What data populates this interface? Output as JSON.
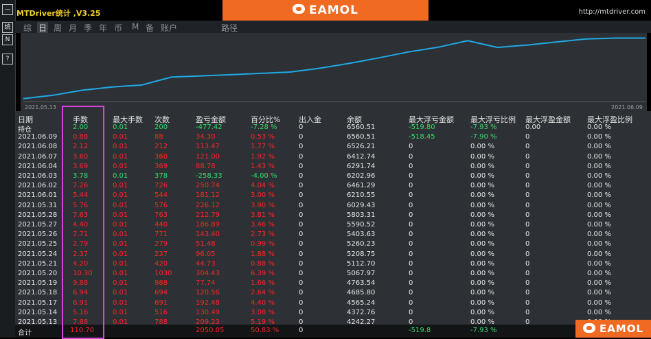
{
  "window": {
    "title": "MTDriver统计 ,V3.25",
    "url": "http://mtdriver.com"
  },
  "watermark": {
    "brand": "EAMOL"
  },
  "sidebar": {
    "buttons": [
      "—",
      "统",
      "N",
      "?"
    ]
  },
  "tabs": [
    {
      "label": "综",
      "active": false
    },
    {
      "label": "日",
      "active": true
    },
    {
      "label": "周",
      "active": false
    },
    {
      "label": "月",
      "active": false
    },
    {
      "label": "季",
      "active": false
    },
    {
      "label": "年",
      "active": false
    },
    {
      "label": "币",
      "active": false
    },
    {
      "label": "M",
      "active": false
    },
    {
      "label": "备",
      "active": false
    },
    {
      "label": "账户",
      "active": false
    },
    {
      "label": "路径",
      "active": false
    }
  ],
  "chart": {
    "start_date": "2021.05.13",
    "end_date": "2021.06.09",
    "line_color": "#1fa9e6",
    "balance": [
      4242.27,
      4372.76,
      4565.24,
      4685.8,
      4763.54,
      5067.97,
      5112.7,
      5157.43,
      5208.75,
      5260.23,
      5403.63,
      5590.52,
      5803.31,
      6029.43,
      6210.55,
      6461.29,
      6202.96,
      6291.74,
      6412.74,
      6526.21,
      6560.51,
      6560.51
    ]
  },
  "table": {
    "headers": [
      "日期",
      "手数",
      "最大手数",
      "次数",
      "盈亏金额",
      "百分比%",
      "出入金",
      "余额",
      "最大浮亏金额",
      "最大浮亏比例",
      "最大浮盈金额",
      "最大浮盈比例"
    ],
    "rows": [
      {
        "date": "持仓",
        "lots": "2.00",
        "max_lots": "0.01",
        "count": "200",
        "pnl": "-477.42",
        "pct": "-7.28 %",
        "io": "0",
        "balance": "6560.51",
        "max_float_loss": "-519.80",
        "max_float_loss_pct": "-7.93 %",
        "max_float_profit": "0.00",
        "max_float_profit_pct": "0.00 %",
        "color": "green"
      },
      {
        "date": "2021.06.09",
        "lots": "0.88",
        "max_lots": "0.01",
        "count": "88",
        "pnl": "34.30",
        "pct": "0.53 %",
        "io": "0",
        "balance": "6560.51",
        "max_float_loss": "-518.45",
        "max_float_loss_pct": "-7.90 %",
        "max_float_profit": "0",
        "max_float_profit_pct": "0.00 %",
        "color": "red"
      },
      {
        "date": "2021.06.08",
        "lots": "2.12",
        "max_lots": "0.01",
        "count": "212",
        "pnl": "113.47",
        "pct": "1.77 %",
        "io": "0",
        "balance": "6526.21",
        "max_float_loss": "0",
        "max_float_loss_pct": "0.00 %",
        "max_float_profit": "0",
        "max_float_profit_pct": "0.00 %",
        "color": "red"
      },
      {
        "date": "2021.06.07",
        "lots": "3.60",
        "max_lots": "0.01",
        "count": "360",
        "pnl": "121.00",
        "pct": "1.92 %",
        "io": "0",
        "balance": "6412.74",
        "max_float_loss": "0",
        "max_float_loss_pct": "0.00 %",
        "max_float_profit": "0",
        "max_float_profit_pct": "0.00 %",
        "color": "red"
      },
      {
        "date": "2021.06.04",
        "lots": "3.69",
        "max_lots": "0.01",
        "count": "369",
        "pnl": "88.78",
        "pct": "1.43 %",
        "io": "0",
        "balance": "6291.74",
        "max_float_loss": "0",
        "max_float_loss_pct": "0.00 %",
        "max_float_profit": "0",
        "max_float_profit_pct": "0.00 %",
        "color": "red"
      },
      {
        "date": "2021.06.03",
        "lots": "3.78",
        "max_lots": "0.01",
        "count": "378",
        "pnl": "-258.33",
        "pct": "-4.00 %",
        "io": "0",
        "balance": "6202.96",
        "max_float_loss": "0",
        "max_float_loss_pct": "0.00 %",
        "max_float_profit": "0",
        "max_float_profit_pct": "0.00 %",
        "color": "green"
      },
      {
        "date": "2021.06.02",
        "lots": "7.26",
        "max_lots": "0.01",
        "count": "726",
        "pnl": "250.74",
        "pct": "4.04 %",
        "io": "0",
        "balance": "6461.29",
        "max_float_loss": "0",
        "max_float_loss_pct": "0.00 %",
        "max_float_profit": "0",
        "max_float_profit_pct": "0.00 %",
        "color": "red"
      },
      {
        "date": "2021.06.01",
        "lots": "5.44",
        "max_lots": "0.01",
        "count": "544",
        "pnl": "181.12",
        "pct": "3.00 %",
        "io": "0",
        "balance": "6210.55",
        "max_float_loss": "0",
        "max_float_loss_pct": "0.00 %",
        "max_float_profit": "0",
        "max_float_profit_pct": "0.00 %",
        "color": "red"
      },
      {
        "date": "2021.05.31",
        "lots": "5.76",
        "max_lots": "0.01",
        "count": "576",
        "pnl": "226.12",
        "pct": "3.90 %",
        "io": "0",
        "balance": "6029.43",
        "max_float_loss": "0",
        "max_float_loss_pct": "0.00 %",
        "max_float_profit": "0",
        "max_float_profit_pct": "0.00 %",
        "color": "red"
      },
      {
        "date": "2021.05.28",
        "lots": "7.63",
        "max_lots": "0.01",
        "count": "763",
        "pnl": "212.79",
        "pct": "3.81 %",
        "io": "0",
        "balance": "5803.31",
        "max_float_loss": "0",
        "max_float_loss_pct": "0.00 %",
        "max_float_profit": "0",
        "max_float_profit_pct": "0.00 %",
        "color": "red"
      },
      {
        "date": "2021.05.27",
        "lots": "4.40",
        "max_lots": "0.01",
        "count": "440",
        "pnl": "186.89",
        "pct": "3.46 %",
        "io": "0",
        "balance": "5590.52",
        "max_float_loss": "0",
        "max_float_loss_pct": "0.00 %",
        "max_float_profit": "0",
        "max_float_profit_pct": "0.00 %",
        "color": "red"
      },
      {
        "date": "2021.05.26",
        "lots": "7.71",
        "max_lots": "0.01",
        "count": "771",
        "pnl": "143.40",
        "pct": "2.73 %",
        "io": "0",
        "balance": "5403.63",
        "max_float_loss": "0",
        "max_float_loss_pct": "0.00 %",
        "max_float_profit": "0",
        "max_float_profit_pct": "0.00 %",
        "color": "red"
      },
      {
        "date": "2021.05.25",
        "lots": "2.79",
        "max_lots": "0.01",
        "count": "279",
        "pnl": "51.48",
        "pct": "0.99 %",
        "io": "0",
        "balance": "5260.23",
        "max_float_loss": "0",
        "max_float_loss_pct": "0.00 %",
        "max_float_profit": "0",
        "max_float_profit_pct": "0.00 %",
        "color": "red"
      },
      {
        "date": "2021.05.24",
        "lots": "2.37",
        "max_lots": "0.01",
        "count": "237",
        "pnl": "96.05",
        "pct": "1.88 %",
        "io": "0",
        "balance": "5208.75",
        "max_float_loss": "0",
        "max_float_loss_pct": "0.00 %",
        "max_float_profit": "0",
        "max_float_profit_pct": "0.00 %",
        "color": "red"
      },
      {
        "date": "2021.05.21",
        "lots": "4.20",
        "max_lots": "0.01",
        "count": "420",
        "pnl": "44.73",
        "pct": "0.88 %",
        "io": "0",
        "balance": "5112.70",
        "max_float_loss": "0",
        "max_float_loss_pct": "0.00 %",
        "max_float_profit": "0",
        "max_float_profit_pct": "0.00 %",
        "color": "red"
      },
      {
        "date": "2021.05.20",
        "lots": "10.30",
        "max_lots": "0.01",
        "count": "1030",
        "pnl": "304.43",
        "pct": "6.39 %",
        "io": "0",
        "balance": "5067.97",
        "max_float_loss": "0",
        "max_float_loss_pct": "0.00 %",
        "max_float_profit": "0",
        "max_float_profit_pct": "0.00 %",
        "color": "red"
      },
      {
        "date": "2021.05.19",
        "lots": "9.88",
        "max_lots": "0.01",
        "count": "988",
        "pnl": "77.74",
        "pct": "1.66 %",
        "io": "0",
        "balance": "4763.54",
        "max_float_loss": "0",
        "max_float_loss_pct": "0.00 %",
        "max_float_profit": "0",
        "max_float_profit_pct": "0.00 %",
        "color": "red"
      },
      {
        "date": "2021.05.18",
        "lots": "6.94",
        "max_lots": "0.01",
        "count": "694",
        "pnl": "120.56",
        "pct": "2.64 %",
        "io": "0",
        "balance": "4685.80",
        "max_float_loss": "0",
        "max_float_loss_pct": "0.00 %",
        "max_float_profit": "0",
        "max_float_profit_pct": "0.00 %",
        "color": "red"
      },
      {
        "date": "2021.05.17",
        "lots": "6.91",
        "max_lots": "0.01",
        "count": "691",
        "pnl": "192.48",
        "pct": "4.40 %",
        "io": "0",
        "balance": "4565.24",
        "max_float_loss": "0",
        "max_float_loss_pct": "0.00 %",
        "max_float_profit": "0",
        "max_float_profit_pct": "0.00 %",
        "color": "red"
      },
      {
        "date": "2021.05.14",
        "lots": "5.16",
        "max_lots": "0.01",
        "count": "516",
        "pnl": "130.49",
        "pct": "3.08 %",
        "io": "0",
        "balance": "4372.76",
        "max_float_loss": "0",
        "max_float_loss_pct": "0.00 %",
        "max_float_profit": "0",
        "max_float_profit_pct": "0.00 %",
        "color": "red"
      },
      {
        "date": "2021.05.13",
        "lots": "7.88",
        "max_lots": "0.01",
        "count": "788",
        "pnl": "209.23",
        "pct": "5.19 %",
        "io": "0",
        "balance": "4242.27",
        "max_float_loss": "0",
        "max_float_loss_pct": "0.00 %",
        "max_float_profit": "0",
        "max_float_profit_pct": "0.00 %",
        "color": "red"
      }
    ],
    "total": {
      "date": "合计",
      "lots": "110.70",
      "pnl": "2050.05",
      "pct": "50.83 %",
      "io": "0",
      "max_float_loss": "-519.8",
      "max_float_loss_pct": "-7.93 %"
    }
  }
}
